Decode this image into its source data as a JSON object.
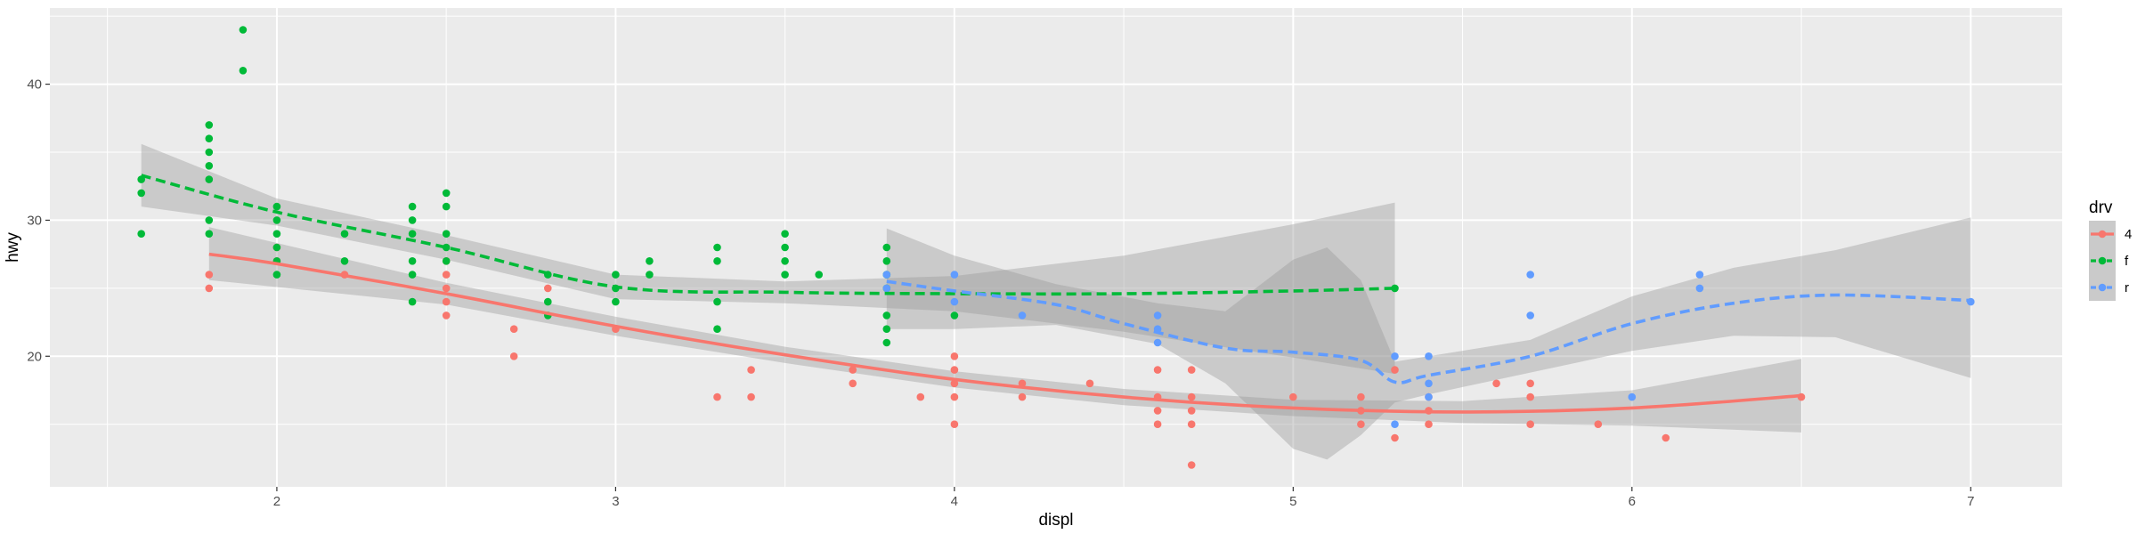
{
  "chart_data": {
    "type": "scatter",
    "title": "",
    "xlabel": "displ",
    "ylabel": "hwy",
    "xlim": [
      1.33,
      7.27
    ],
    "ylim": [
      10.4,
      45.6
    ],
    "x_ticks": [
      2,
      3,
      4,
      5,
      6,
      7
    ],
    "y_ticks": [
      20,
      30,
      40
    ],
    "x_tick_labels": [
      "2",
      "3",
      "4",
      "5",
      "6",
      "7"
    ],
    "y_tick_labels": [
      "20",
      "30",
      "40"
    ],
    "grid": true,
    "legend": {
      "title": "drv",
      "position": "right"
    },
    "colors": {
      "4": "#F8766D",
      "f": "#00BA38",
      "r": "#619CFF",
      "panel": "#EBEBEB",
      "ribbon": "#999999"
    },
    "series": [
      {
        "name": "4",
        "color": "#F8766D",
        "linetype": "solid",
        "points": [
          [
            1.8,
            26
          ],
          [
            1.8,
            25
          ],
          [
            2.0,
            28
          ],
          [
            2.0,
            27
          ],
          [
            2.2,
            26
          ],
          [
            2.5,
            27
          ],
          [
            2.5,
            26
          ],
          [
            2.5,
            25
          ],
          [
            2.5,
            24
          ],
          [
            2.5,
            23
          ],
          [
            2.7,
            22
          ],
          [
            2.7,
            20
          ],
          [
            2.8,
            25
          ],
          [
            3.0,
            22
          ],
          [
            3.3,
            17
          ],
          [
            3.4,
            19
          ],
          [
            3.4,
            17
          ],
          [
            3.7,
            19
          ],
          [
            3.7,
            18
          ],
          [
            3.9,
            17
          ],
          [
            4.0,
            20
          ],
          [
            4.0,
            19
          ],
          [
            4.0,
            18
          ],
          [
            4.0,
            17
          ],
          [
            4.0,
            15
          ],
          [
            4.2,
            18
          ],
          [
            4.2,
            17
          ],
          [
            4.4,
            18
          ],
          [
            4.6,
            19
          ],
          [
            4.6,
            17
          ],
          [
            4.6,
            16
          ],
          [
            4.6,
            15
          ],
          [
            4.7,
            19
          ],
          [
            4.7,
            17
          ],
          [
            4.7,
            16
          ],
          [
            4.7,
            15
          ],
          [
            4.7,
            12
          ],
          [
            5.0,
            17
          ],
          [
            5.2,
            17
          ],
          [
            5.2,
            16
          ],
          [
            5.2,
            15
          ],
          [
            5.3,
            14
          ],
          [
            5.3,
            19
          ],
          [
            5.4,
            17
          ],
          [
            5.4,
            16
          ],
          [
            5.4,
            15
          ],
          [
            5.7,
            18
          ],
          [
            5.7,
            17
          ],
          [
            5.7,
            15
          ],
          [
            5.9,
            15
          ],
          [
            6.1,
            14
          ],
          [
            6.5,
            17
          ],
          [
            5.6,
            18
          ]
        ],
        "smooth": [
          [
            1.8,
            27.5
          ],
          [
            2.0,
            26.8
          ],
          [
            2.5,
            24.6
          ],
          [
            3.0,
            22.2
          ],
          [
            3.5,
            20.1
          ],
          [
            4.0,
            18.3
          ],
          [
            4.5,
            17.0
          ],
          [
            5.0,
            16.2
          ],
          [
            5.5,
            15.9
          ],
          [
            6.0,
            16.2
          ],
          [
            6.5,
            17.1
          ]
        ],
        "band": [
          [
            1.8,
            25.6,
            29.5
          ],
          [
            2.5,
            23.8,
            25.4
          ],
          [
            3.0,
            21.5,
            22.9
          ],
          [
            3.5,
            19.5,
            20.7
          ],
          [
            4.0,
            17.7,
            18.9
          ],
          [
            4.5,
            16.4,
            17.6
          ],
          [
            5.0,
            15.6,
            16.8
          ],
          [
            5.5,
            15.1,
            16.7
          ],
          [
            6.0,
            14.9,
            17.5
          ],
          [
            6.5,
            14.4,
            19.8
          ]
        ]
      },
      {
        "name": "f",
        "color": "#00BA38",
        "linetype": "dashed",
        "points": [
          [
            1.6,
            33
          ],
          [
            1.6,
            32
          ],
          [
            1.6,
            29
          ],
          [
            1.8,
            37
          ],
          [
            1.8,
            36
          ],
          [
            1.8,
            35
          ],
          [
            1.8,
            34
          ],
          [
            1.8,
            33
          ],
          [
            1.8,
            30
          ],
          [
            1.8,
            29
          ],
          [
            1.9,
            44
          ],
          [
            1.9,
            41
          ],
          [
            2.0,
            31
          ],
          [
            2.0,
            30
          ],
          [
            2.0,
            29
          ],
          [
            2.0,
            28
          ],
          [
            2.0,
            27
          ],
          [
            2.0,
            26
          ],
          [
            2.2,
            29
          ],
          [
            2.2,
            27
          ],
          [
            2.4,
            31
          ],
          [
            2.4,
            30
          ],
          [
            2.4,
            29
          ],
          [
            2.4,
            27
          ],
          [
            2.4,
            26
          ],
          [
            2.4,
            24
          ],
          [
            2.5,
            32
          ],
          [
            2.5,
            31
          ],
          [
            2.5,
            29
          ],
          [
            2.5,
            28
          ],
          [
            2.5,
            27
          ],
          [
            2.8,
            26
          ],
          [
            2.8,
            24
          ],
          [
            2.8,
            23
          ],
          [
            3.0,
            26
          ],
          [
            3.0,
            25
          ],
          [
            3.0,
            24
          ],
          [
            3.1,
            27
          ],
          [
            3.1,
            26
          ],
          [
            3.3,
            28
          ],
          [
            3.3,
            27
          ],
          [
            3.3,
            24
          ],
          [
            3.3,
            22
          ],
          [
            3.5,
            29
          ],
          [
            3.5,
            28
          ],
          [
            3.5,
            27
          ],
          [
            3.5,
            26
          ],
          [
            3.6,
            26
          ],
          [
            3.8,
            28
          ],
          [
            3.8,
            27
          ],
          [
            3.8,
            26
          ],
          [
            3.8,
            25
          ],
          [
            3.8,
            23
          ],
          [
            3.8,
            22
          ],
          [
            3.8,
            21
          ],
          [
            4.0,
            23
          ],
          [
            5.3,
            25
          ]
        ],
        "smooth": [
          [
            1.6,
            33.3
          ],
          [
            2.0,
            30.6
          ],
          [
            2.5,
            28.0
          ],
          [
            3.0,
            25.1
          ],
          [
            3.5,
            24.7
          ],
          [
            4.0,
            24.6
          ],
          [
            4.5,
            24.6
          ],
          [
            5.0,
            24.8
          ],
          [
            5.3,
            25.0
          ]
        ],
        "band": [
          [
            1.6,
            31.0,
            35.6
          ],
          [
            2.0,
            29.6,
            31.6
          ],
          [
            2.5,
            27.1,
            28.9
          ],
          [
            3.0,
            24.2,
            26.0
          ],
          [
            3.5,
            23.9,
            25.5
          ],
          [
            4.0,
            23.3,
            25.9
          ],
          [
            4.5,
            21.8,
            27.4
          ],
          [
            5.0,
            19.9,
            29.7
          ],
          [
            5.3,
            18.7,
            31.3
          ]
        ]
      },
      {
        "name": "r",
        "color": "#619CFF",
        "linetype": "dashed",
        "points": [
          [
            3.8,
            26
          ],
          [
            3.8,
            25
          ],
          [
            4.0,
            26
          ],
          [
            4.0,
            24
          ],
          [
            4.2,
            23
          ],
          [
            4.6,
            23
          ],
          [
            4.6,
            22
          ],
          [
            4.6,
            21
          ],
          [
            5.3,
            20
          ],
          [
            5.3,
            15
          ],
          [
            5.4,
            20
          ],
          [
            5.4,
            18
          ],
          [
            5.4,
            17
          ],
          [
            5.7,
            26
          ],
          [
            5.7,
            23
          ],
          [
            6.0,
            17
          ],
          [
            6.2,
            26
          ],
          [
            6.2,
            25
          ],
          [
            7.0,
            24
          ]
        ],
        "smooth": [
          [
            3.8,
            25.5
          ],
          [
            4.0,
            24.8
          ],
          [
            4.3,
            23.8
          ],
          [
            4.5,
            22.4
          ],
          [
            4.8,
            20.6
          ],
          [
            5.0,
            20.3
          ],
          [
            5.2,
            19.7
          ],
          [
            5.3,
            18.1
          ],
          [
            5.4,
            18.6
          ],
          [
            5.7,
            20.0
          ],
          [
            6.0,
            22.4
          ],
          [
            6.3,
            23.9
          ],
          [
            6.6,
            24.5
          ],
          [
            7.0,
            24.1
          ]
        ],
        "band": [
          [
            3.8,
            22.0,
            29.4
          ],
          [
            4.0,
            22.0,
            27.4
          ],
          [
            4.3,
            22.3,
            25.3
          ],
          [
            4.6,
            20.9,
            23.9
          ],
          [
            4.8,
            18.0,
            23.3
          ],
          [
            5.0,
            13.2,
            27.1
          ],
          [
            5.1,
            12.4,
            28.0
          ],
          [
            5.2,
            14.2,
            25.6
          ],
          [
            5.3,
            16.6,
            19.6
          ],
          [
            5.4,
            17.2,
            20.0
          ],
          [
            5.7,
            18.8,
            21.2
          ],
          [
            6.0,
            20.4,
            24.4
          ],
          [
            6.3,
            21.5,
            26.5
          ],
          [
            6.6,
            21.4,
            27.8
          ],
          [
            7.0,
            18.4,
            30.2
          ]
        ]
      }
    ]
  }
}
